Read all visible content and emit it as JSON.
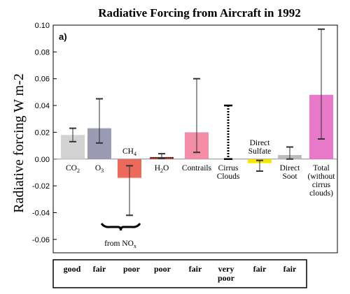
{
  "chart_data": {
    "type": "bar",
    "title": "Radiative Forcing from Aircraft in 1992",
    "panel_label": "a)",
    "ylabel": "Radiative forcing W m-2",
    "ylim": [
      -0.07,
      0.1
    ],
    "yticks": [
      "0.10",
      "0.08",
      "0.06",
      "0.04",
      "0.02",
      "0.00",
      "-0.02",
      "-0.04",
      "-0.06"
    ],
    "ytick_values": [
      0.1,
      0.08,
      0.06,
      0.04,
      0.02,
      0.0,
      -0.02,
      -0.04,
      -0.06
    ],
    "categories": [
      {
        "label": [
          "CO",
          "2"
        ],
        "label_pos": "below",
        "value": 0.018,
        "err_low": 0.013,
        "err_high": 0.023,
        "color": "#d3d3d3",
        "pattern": "solid",
        "confidence": [
          "good"
        ]
      },
      {
        "label": [
          "O",
          "3"
        ],
        "label_pos": "below",
        "value": 0.023,
        "err_low": 0.012,
        "err_high": 0.045,
        "color": "#9b9bb5",
        "pattern": "solid",
        "confidence": [
          "fair"
        ]
      },
      {
        "label": [
          "CH",
          "4"
        ],
        "label_pos": "above",
        "value": -0.014,
        "err_low": -0.042,
        "err_high": -0.005,
        "color": "#ec6a5a",
        "pattern": "solid",
        "confidence": [
          "poor"
        ]
      },
      {
        "label": [
          "H",
          "2",
          "O"
        ],
        "label_pos": "below",
        "value": 0.0015,
        "err_low": 0.0005,
        "err_high": 0.004,
        "color": "#c0392b",
        "pattern": "hatch",
        "confidence": [
          "poor"
        ]
      },
      {
        "label": [
          "Contrails"
        ],
        "label_pos": "below",
        "value": 0.02,
        "err_low": 0.005,
        "err_high": 0.06,
        "color": "#f48ea6",
        "pattern": "solid",
        "confidence": [
          "fair"
        ]
      },
      {
        "label": [
          "Cirrus",
          "Clouds"
        ],
        "label_pos": "below",
        "value": 0.0,
        "err_low": 0.0,
        "err_high": 0.04,
        "color": "#000000",
        "pattern": "dotted",
        "confidence": [
          "very",
          "poor"
        ]
      },
      {
        "label": [
          "Direct",
          "Sulfate"
        ],
        "label_pos": "above",
        "value": -0.003,
        "err_low": -0.009,
        "err_high": -0.001,
        "color": "#f5e50a",
        "pattern": "solid",
        "confidence": [
          "fair"
        ]
      },
      {
        "label": [
          "Direct",
          "Soot"
        ],
        "label_pos": "below",
        "value": 0.003,
        "err_low": 0.0,
        "err_high": 0.009,
        "color": "#bcbcbc",
        "pattern": "solid",
        "confidence": [
          "fair"
        ]
      },
      {
        "label": [
          "Total",
          "(without",
          "cirrus",
          "clouds)"
        ],
        "label_pos": "below",
        "value": 0.048,
        "err_low": 0.015,
        "err_high": 0.097,
        "color": "#e879c9",
        "pattern": "solid",
        "confidence": []
      }
    ],
    "annotation": {
      "text": "from NO",
      "sub": "x"
    },
    "grid": false,
    "legend": "none"
  }
}
